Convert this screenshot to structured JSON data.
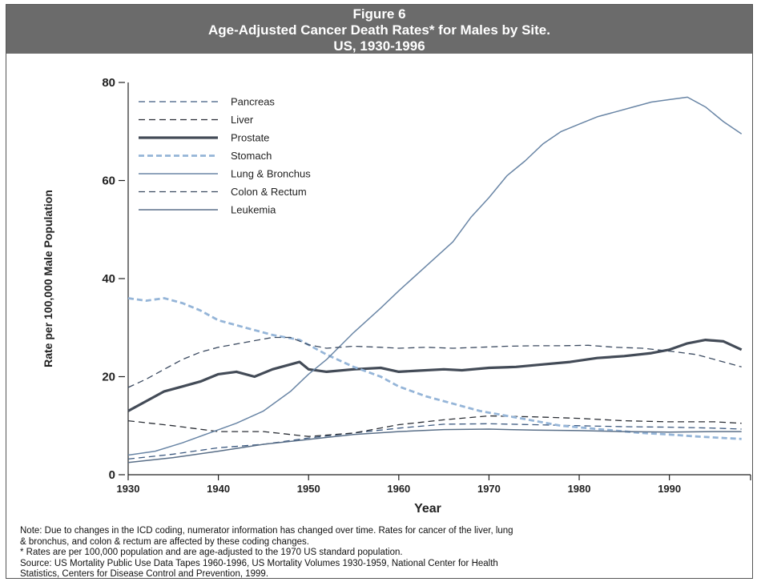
{
  "figure": {
    "number": "Figure 6",
    "title_line1": "Age-Adjusted Cancer Death Rates* for Males by Site.",
    "title_line2": "US, 1930-1996"
  },
  "chart_data": {
    "type": "line",
    "xlabel": "Year",
    "ylabel": "Rate per 100,000 Male Population",
    "xlim": [
      1930,
      1999
    ],
    "ylim": [
      0,
      80
    ],
    "x_ticks": [
      1930,
      1940,
      1950,
      1960,
      1970,
      1980,
      1990
    ],
    "y_ticks": [
      0,
      20,
      40,
      60,
      80
    ],
    "legend_position": "top-left",
    "grid": false,
    "series": [
      {
        "name": "Pancreas",
        "style": "dashed",
        "x": [
          1930,
          1935,
          1940,
          1945,
          1950,
          1955,
          1960,
          1965,
          1970,
          1975,
          1980,
          1985,
          1990,
          1995,
          1998
        ],
        "y": [
          3.2,
          4.2,
          5.5,
          6.2,
          7.5,
          8.5,
          9.5,
          10.3,
          10.4,
          10.2,
          10.0,
          9.8,
          9.7,
          9.5,
          9.3
        ]
      },
      {
        "name": "Liver",
        "style": "dashed",
        "x": [
          1930,
          1935,
          1940,
          1945,
          1950,
          1955,
          1960,
          1965,
          1970,
          1975,
          1980,
          1985,
          1990,
          1995,
          1998
        ],
        "y": [
          11.0,
          10.0,
          8.8,
          8.8,
          7.8,
          8.5,
          10.2,
          11.2,
          12.0,
          11.8,
          11.5,
          11.0,
          10.8,
          10.8,
          10.5
        ]
      },
      {
        "name": "Prostate",
        "style": "solid-thick",
        "x": [
          1930,
          1932,
          1934,
          1936,
          1938,
          1940,
          1942,
          1944,
          1946,
          1948,
          1949,
          1950,
          1952,
          1955,
          1958,
          1960,
          1962,
          1965,
          1967,
          1970,
          1973,
          1976,
          1979,
          1982,
          1985,
          1988,
          1990,
          1992,
          1994,
          1996,
          1998
        ],
        "y": [
          13.0,
          15.0,
          17.0,
          18.0,
          19.0,
          20.5,
          21.0,
          20.0,
          21.5,
          22.5,
          23.0,
          21.5,
          21.0,
          21.5,
          21.8,
          21.0,
          21.2,
          21.5,
          21.3,
          21.8,
          22.0,
          22.5,
          23.0,
          23.8,
          24.2,
          24.8,
          25.5,
          26.8,
          27.5,
          27.2,
          25.5
        ]
      },
      {
        "name": "Stomach",
        "style": "dashed-light",
        "x": [
          1930,
          1932,
          1934,
          1936,
          1938,
          1940,
          1943,
          1946,
          1949,
          1952,
          1955,
          1958,
          1960,
          1963,
          1966,
          1969,
          1972,
          1975,
          1978,
          1981,
          1984,
          1987,
          1990,
          1993,
          1996,
          1998
        ],
        "y": [
          36.0,
          35.5,
          36.0,
          35.0,
          33.5,
          31.5,
          30.0,
          28.5,
          27.5,
          24.5,
          22.0,
          20.0,
          18.0,
          16.0,
          14.5,
          13.0,
          12.0,
          11.0,
          10.0,
          9.5,
          9.0,
          8.5,
          8.2,
          7.8,
          7.5,
          7.3
        ]
      },
      {
        "name": "Lung & Bronchus",
        "style": "solid-thin",
        "x": [
          1930,
          1933,
          1936,
          1939,
          1942,
          1945,
          1948,
          1950,
          1952,
          1955,
          1958,
          1960,
          1963,
          1966,
          1968,
          1970,
          1972,
          1974,
          1976,
          1978,
          1980,
          1982,
          1984,
          1986,
          1988,
          1990,
          1992,
          1994,
          1996,
          1998
        ],
        "y": [
          4.0,
          4.8,
          6.5,
          8.5,
          10.5,
          13.0,
          17.0,
          20.5,
          23.5,
          29.0,
          34.0,
          37.5,
          42.5,
          47.5,
          52.5,
          56.5,
          61.0,
          64.0,
          67.5,
          70.0,
          71.5,
          73.0,
          74.0,
          75.0,
          76.0,
          76.5,
          77.0,
          75.0,
          72.0,
          69.5
        ]
      },
      {
        "name": "Colon & Rectum",
        "style": "dashed",
        "x": [
          1930,
          1932,
          1934,
          1936,
          1938,
          1940,
          1943,
          1946,
          1948,
          1950,
          1952,
          1955,
          1958,
          1960,
          1963,
          1966,
          1969,
          1972,
          1975,
          1978,
          1981,
          1984,
          1987,
          1990,
          1993,
          1996,
          1998
        ],
        "y": [
          17.8,
          19.5,
          21.5,
          23.5,
          25.0,
          26.0,
          27.0,
          28.0,
          28.0,
          26.5,
          25.8,
          26.2,
          26.0,
          25.8,
          26.0,
          25.8,
          26.0,
          26.2,
          26.3,
          26.3,
          26.4,
          26.0,
          25.8,
          25.2,
          24.5,
          23.0,
          22.0
        ]
      },
      {
        "name": "Leukemia",
        "style": "solid-thin",
        "x": [
          1930,
          1935,
          1940,
          1945,
          1950,
          1955,
          1960,
          1965,
          1970,
          1975,
          1980,
          1985,
          1990,
          1995,
          1998
        ],
        "y": [
          2.5,
          3.5,
          4.8,
          6.2,
          7.2,
          8.2,
          8.8,
          9.2,
          9.3,
          9.1,
          9.0,
          8.8,
          8.7,
          8.8,
          8.8
        ]
      }
    ]
  },
  "notes": {
    "line1": "Note: Due to changes in the ICD coding, numerator information has changed over time. Rates for cancer of the liver, lung",
    "line2": "& bronchus, and colon & rectum are affected by these coding changes.",
    "line3": "* Rates are per 100,000 population and are age-adjusted to the 1970 US standard population.",
    "line4": "Source: US Mortality Public Use Data Tapes 1960-1996, US Mortality Volumes 1930-1959, National Center for Health",
    "line5": "Statistics, Centers for Disease Control and Prevention, 1999."
  },
  "colors": {
    "header_bg": "#6b6b6b",
    "dark_line": "#3a4450",
    "light_line": "#8fb0d4"
  }
}
